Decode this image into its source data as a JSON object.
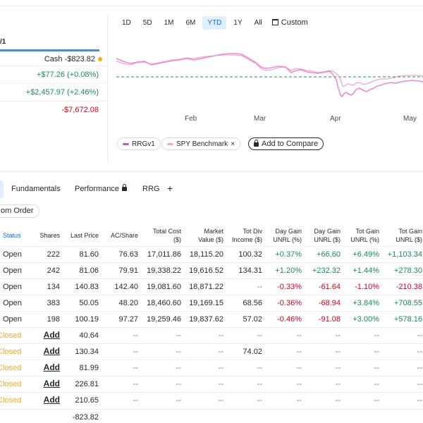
{
  "summary": {
    "account_fragment": "/1",
    "cash_label": "Cash -$823.82",
    "day_gain": "+$77.26 (+0.08%)",
    "total_gain": "+$2,457.97 (+2.46%)",
    "other_value": "-$7,672.08"
  },
  "ranges": [
    "1D",
    "5D",
    "1M",
    "6M",
    "YTD",
    "1Y",
    "All"
  ],
  "active_range": "YTD",
  "custom_label": "Custom",
  "chart": {
    "x_labels": [
      "Feb",
      "Mar",
      "Apr",
      "May"
    ],
    "portfolio_color": "#e58cdc",
    "benchmark_color": "#f2a6c8",
    "baseline_color": "#1a8a5a"
  },
  "legend": {
    "portfolio": "RRGv1",
    "benchmark": "SPY Benchmark",
    "benchmark_close": "×",
    "compare": "Add to Compare"
  },
  "tabs": {
    "fundamentals": "Fundamentals",
    "performance": "Performance",
    "rrg": "RRG",
    "add": "+"
  },
  "order_button": "om Order",
  "table": {
    "headers": {
      "status": "Status",
      "shares": "Shares",
      "last_price": "Last Price",
      "ac_share": "AC/Share",
      "total_cost_1": "Total Cost",
      "total_cost_2": "($)",
      "market_value_1": "Market",
      "market_value_2": "Value ($)",
      "tot_div_1": "Tot Div",
      "tot_div_2": "Income ($)",
      "day_gain_pct_1": "Day Gain",
      "day_gain_pct_2": "UNRL (%)",
      "day_gain_usd_1": "Day Gain",
      "day_gain_usd_2": "UNRL ($)",
      "tot_gain_pct_1": "Tot Gain",
      "tot_gain_pct_2": "UNRL (%)",
      "tot_gain_usd_1": "Tot Gain",
      "tot_gain_usd_2": "UNRL ($)"
    },
    "rows": [
      {
        "status": "Open",
        "shares": "222",
        "last": "81.60",
        "ac": "76.63",
        "cost": "17,011.86",
        "mv": "18,115.20",
        "div": "100.32",
        "dgp": "+0.37%",
        "dgu": "+66.60",
        "tgp": "+6.49%",
        "tgu": "+1,103.34"
      },
      {
        "status": "Open",
        "shares": "242",
        "last": "81.06",
        "ac": "79.91",
        "cost": "19,338.22",
        "mv": "19,616.52",
        "div": "134.31",
        "dgp": "+1.20%",
        "dgu": "+232.32",
        "tgp": "+1.44%",
        "tgu": "+278.30"
      },
      {
        "status": "Open",
        "shares": "134",
        "last": "140.83",
        "ac": "142.40",
        "cost": "19,081.60",
        "mv": "18,871.22",
        "div": "--",
        "dgp": "-0.33%",
        "dgu": "-61.64",
        "tgp": "-1.10%",
        "tgu": "-210.38"
      },
      {
        "status": "Open",
        "shares": "383",
        "last": "50.05",
        "ac": "48.20",
        "cost": "18,460.60",
        "mv": "19,169.15",
        "div": "68.56",
        "dgp": "-0.36%",
        "dgu": "-68.94",
        "tgp": "+3.84%",
        "tgu": "+708.55"
      },
      {
        "status": "Open",
        "shares": "198",
        "last": "100.19",
        "ac": "97.27",
        "cost": "19,259.46",
        "mv": "19,837.62",
        "div": "57.02",
        "dgp": "-0.46%",
        "dgu": "-91.08",
        "tgp": "+3.00%",
        "tgu": "+578.16"
      },
      {
        "status": "Closed",
        "shares": "Add",
        "last": "40.64",
        "ac": "--",
        "cost": "--",
        "mv": "--",
        "div": "--",
        "dgp": "--",
        "dgu": "--",
        "tgp": "--",
        "tgu": "--"
      },
      {
        "status": "Closed",
        "shares": "Add",
        "last": "130.34",
        "ac": "--",
        "cost": "--",
        "mv": "--",
        "div": "74.02",
        "dgp": "--",
        "dgu": "--",
        "tgp": "--",
        "tgu": "--"
      },
      {
        "status": "Closed",
        "shares": "Add",
        "last": "81.99",
        "ac": "--",
        "cost": "--",
        "mv": "--",
        "div": "--",
        "dgp": "--",
        "dgu": "--",
        "tgp": "--",
        "tgu": "--"
      },
      {
        "status": "Closed",
        "shares": "Add",
        "last": "226.81",
        "ac": "--",
        "cost": "--",
        "mv": "--",
        "div": "--",
        "dgp": "--",
        "dgu": "--",
        "tgp": "--",
        "tgu": "--"
      },
      {
        "status": "Closed",
        "shares": "Add",
        "last": "210.65",
        "ac": "--",
        "cost": "--",
        "mv": "--",
        "div": "--",
        "dgp": "--",
        "dgu": "--",
        "tgp": "--",
        "tgu": "--"
      }
    ],
    "cash_row_value": "-823.82"
  }
}
